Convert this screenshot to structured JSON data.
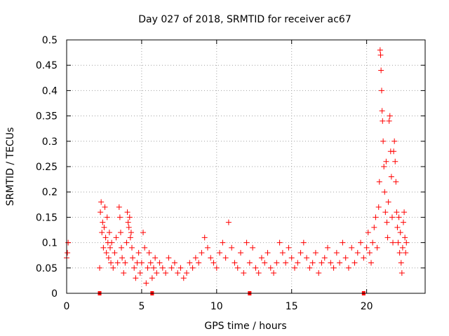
{
  "chart_data": {
    "type": "scatter",
    "title": "Day 027 of 2018, SRMTID for receiver ac67",
    "xlabel": "GPS time / hours",
    "ylabel": "SRMTID / TECUs",
    "xlim": [
      0,
      23.9
    ],
    "ylim": [
      0,
      0.5
    ],
    "x_ticks": [
      0,
      5,
      10,
      15,
      20
    ],
    "x_tick_labels": [
      "0",
      "5",
      "10",
      "15",
      "20"
    ],
    "y_ticks": [
      0,
      0.05,
      0.1,
      0.15,
      0.2,
      0.25,
      0.3,
      0.35,
      0.4,
      0.45,
      0.5
    ],
    "y_tick_labels": [
      "0",
      "0.05",
      "0.1",
      "0.15",
      "0.2",
      "0.25",
      "0.3",
      "0.35",
      "0.4",
      "0.45",
      "0.5"
    ],
    "grid": true,
    "marker": "+",
    "color": "#ff0000",
    "series": [
      {
        "name": "SRMTID",
        "points": [
          [
            0.0,
            0.07
          ],
          [
            0.05,
            0.08
          ],
          [
            0.1,
            0.1
          ],
          [
            2.2,
            0.05
          ],
          [
            2.25,
            0.16
          ],
          [
            2.3,
            0.18
          ],
          [
            2.35,
            0.12
          ],
          [
            2.4,
            0.14
          ],
          [
            2.45,
            0.09
          ],
          [
            2.5,
            0.13
          ],
          [
            2.55,
            0.17
          ],
          [
            2.6,
            0.11
          ],
          [
            2.65,
            0.08
          ],
          [
            2.7,
            0.15
          ],
          [
            2.75,
            0.1
          ],
          [
            2.8,
            0.07
          ],
          [
            2.85,
            0.12
          ],
          [
            2.9,
            0.09
          ],
          [
            2.95,
            0.06
          ],
          [
            3.0,
            0.1
          ],
          [
            3.1,
            0.05
          ],
          [
            3.2,
            0.08
          ],
          [
            3.3,
            0.11
          ],
          [
            3.4,
            0.06
          ],
          [
            3.5,
            0.17
          ],
          [
            3.55,
            0.15
          ],
          [
            3.6,
            0.12
          ],
          [
            3.65,
            0.09
          ],
          [
            3.7,
            0.07
          ],
          [
            3.8,
            0.04
          ],
          [
            3.9,
            0.06
          ],
          [
            4.0,
            0.1
          ],
          [
            4.05,
            0.16
          ],
          [
            4.1,
            0.14
          ],
          [
            4.15,
            0.13
          ],
          [
            4.2,
            0.15
          ],
          [
            4.25,
            0.11
          ],
          [
            4.3,
            0.12
          ],
          [
            4.35,
            0.09
          ],
          [
            4.4,
            0.07
          ],
          [
            4.5,
            0.05
          ],
          [
            4.6,
            0.03
          ],
          [
            4.7,
            0.06
          ],
          [
            4.8,
            0.08
          ],
          [
            4.9,
            0.04
          ],
          [
            5.0,
            0.06
          ],
          [
            5.1,
            0.12
          ],
          [
            5.2,
            0.09
          ],
          [
            5.3,
            0.02
          ],
          [
            5.4,
            0.05
          ],
          [
            5.5,
            0.08
          ],
          [
            5.6,
            0.06
          ],
          [
            5.7,
            0.03
          ],
          [
            5.8,
            0.05
          ],
          [
            5.9,
            0.07
          ],
          [
            6.0,
            0.04
          ],
          [
            6.2,
            0.06
          ],
          [
            6.4,
            0.05
          ],
          [
            6.6,
            0.04
          ],
          [
            6.8,
            0.07
          ],
          [
            7.0,
            0.05
          ],
          [
            7.2,
            0.06
          ],
          [
            7.4,
            0.04
          ],
          [
            7.6,
            0.05
          ],
          [
            7.8,
            0.03
          ],
          [
            8.0,
            0.04
          ],
          [
            8.2,
            0.06
          ],
          [
            8.4,
            0.05
          ],
          [
            8.6,
            0.07
          ],
          [
            8.8,
            0.06
          ],
          [
            9.0,
            0.08
          ],
          [
            9.2,
            0.11
          ],
          [
            9.4,
            0.09
          ],
          [
            9.6,
            0.07
          ],
          [
            9.8,
            0.06
          ],
          [
            10.0,
            0.05
          ],
          [
            10.2,
            0.08
          ],
          [
            10.4,
            0.1
          ],
          [
            10.6,
            0.07
          ],
          [
            10.8,
            0.14
          ],
          [
            11.0,
            0.09
          ],
          [
            11.2,
            0.06
          ],
          [
            11.4,
            0.05
          ],
          [
            11.6,
            0.08
          ],
          [
            11.8,
            0.04
          ],
          [
            12.0,
            0.1
          ],
          [
            12.2,
            0.06
          ],
          [
            12.4,
            0.09
          ],
          [
            12.6,
            0.05
          ],
          [
            12.8,
            0.04
          ],
          [
            13.0,
            0.07
          ],
          [
            13.2,
            0.06
          ],
          [
            13.4,
            0.08
          ],
          [
            13.6,
            0.05
          ],
          [
            13.8,
            0.04
          ],
          [
            14.0,
            0.06
          ],
          [
            14.2,
            0.1
          ],
          [
            14.4,
            0.08
          ],
          [
            14.6,
            0.06
          ],
          [
            14.8,
            0.09
          ],
          [
            15.0,
            0.07
          ],
          [
            15.2,
            0.05
          ],
          [
            15.4,
            0.06
          ],
          [
            15.6,
            0.08
          ],
          [
            15.8,
            0.1
          ],
          [
            16.0,
            0.07
          ],
          [
            16.2,
            0.05
          ],
          [
            16.4,
            0.06
          ],
          [
            16.6,
            0.08
          ],
          [
            16.8,
            0.04
          ],
          [
            17.0,
            0.06
          ],
          [
            17.2,
            0.07
          ],
          [
            17.4,
            0.09
          ],
          [
            17.6,
            0.06
          ],
          [
            17.8,
            0.05
          ],
          [
            18.0,
            0.08
          ],
          [
            18.2,
            0.06
          ],
          [
            18.4,
            0.1
          ],
          [
            18.6,
            0.07
          ],
          [
            18.8,
            0.05
          ],
          [
            19.0,
            0.09
          ],
          [
            19.2,
            0.06
          ],
          [
            19.4,
            0.08
          ],
          [
            19.6,
            0.1
          ],
          [
            19.8,
            0.07
          ],
          [
            20.0,
            0.09
          ],
          [
            20.1,
            0.12
          ],
          [
            20.2,
            0.08
          ],
          [
            20.3,
            0.06
          ],
          [
            20.4,
            0.1
          ],
          [
            20.5,
            0.13
          ],
          [
            20.6,
            0.15
          ],
          [
            20.7,
            0.09
          ],
          [
            20.8,
            0.17
          ],
          [
            20.85,
            0.22
          ],
          [
            20.9,
            0.48
          ],
          [
            20.93,
            0.47
          ],
          [
            20.96,
            0.44
          ],
          [
            21.0,
            0.4
          ],
          [
            21.03,
            0.36
          ],
          [
            21.06,
            0.34
          ],
          [
            21.1,
            0.3
          ],
          [
            21.15,
            0.25
          ],
          [
            21.2,
            0.2
          ],
          [
            21.25,
            0.16
          ],
          [
            21.3,
            0.26
          ],
          [
            21.35,
            0.14
          ],
          [
            21.4,
            0.11
          ],
          [
            21.45,
            0.18
          ],
          [
            21.5,
            0.34
          ],
          [
            21.55,
            0.35
          ],
          [
            21.6,
            0.28
          ],
          [
            21.65,
            0.23
          ],
          [
            21.7,
            0.15
          ],
          [
            21.75,
            0.1
          ],
          [
            21.8,
            0.28
          ],
          [
            21.85,
            0.3
          ],
          [
            21.9,
            0.26
          ],
          [
            21.95,
            0.22
          ],
          [
            22.0,
            0.16
          ],
          [
            22.05,
            0.13
          ],
          [
            22.1,
            0.1
          ],
          [
            22.15,
            0.15
          ],
          [
            22.2,
            0.08
          ],
          [
            22.25,
            0.12
          ],
          [
            22.3,
            0.06
          ],
          [
            22.35,
            0.04
          ],
          [
            22.4,
            0.09
          ],
          [
            22.45,
            0.14
          ],
          [
            22.5,
            0.16
          ],
          [
            22.55,
            0.11
          ],
          [
            22.6,
            0.08
          ],
          [
            22.65,
            0.1
          ]
        ]
      }
    ],
    "axis_markers": {
      "description": "small filled squares on the x axis",
      "x": [
        2.2,
        5.7,
        12.2,
        19.8
      ]
    }
  }
}
